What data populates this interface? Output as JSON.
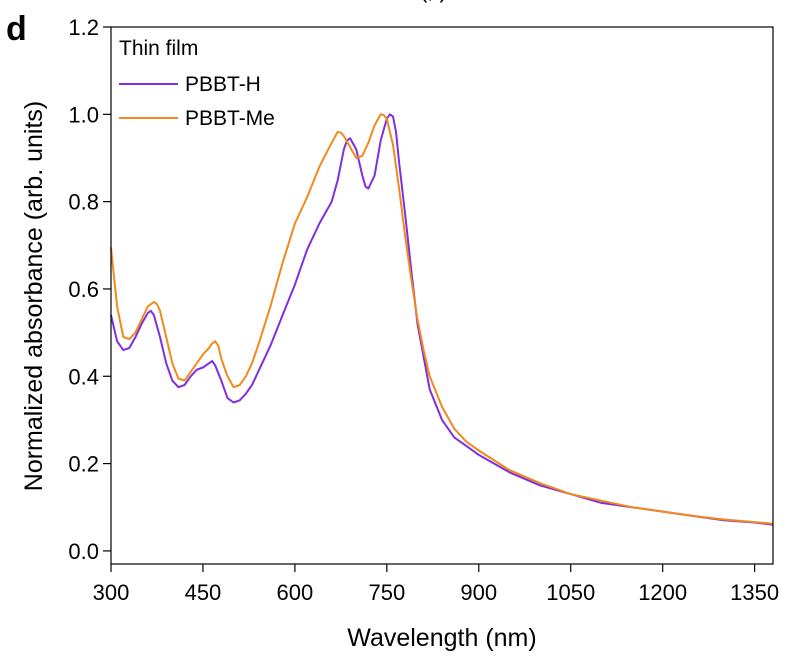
{
  "panel_label": "d",
  "top_text_fragment": "(,  )",
  "chart_data": {
    "type": "line",
    "xlabel": "Wavelength (nm)",
    "ylabel": "Normalized absorbance (arb. units)",
    "xlim": [
      300,
      1380
    ],
    "ylim": [
      -0.03,
      1.2
    ],
    "xticks": [
      300,
      450,
      600,
      750,
      900,
      1050,
      1200,
      1350
    ],
    "yticks": [
      0.0,
      0.2,
      0.4,
      0.6,
      0.8,
      1.0,
      1.2
    ],
    "ytick_labels": [
      "0.0",
      "0.2",
      "0.4",
      "0.6",
      "0.8",
      "1.0",
      "1.2"
    ],
    "grid": false,
    "legend": {
      "title": "Thin film",
      "placement": "top-left"
    },
    "series": [
      {
        "name": "PBBT-H",
        "color": "#7f2ee0",
        "x": [
          300,
          310,
          320,
          330,
          340,
          350,
          360,
          365,
          370,
          380,
          390,
          400,
          410,
          420,
          430,
          440,
          450,
          460,
          465,
          470,
          480,
          490,
          500,
          510,
          520,
          530,
          540,
          560,
          580,
          600,
          620,
          640,
          660,
          670,
          680,
          685,
          690,
          700,
          710,
          715,
          720,
          730,
          740,
          750,
          755,
          760,
          765,
          770,
          780,
          790,
          800,
          820,
          840,
          860,
          880,
          900,
          950,
          1000,
          1050,
          1100,
          1150,
          1200,
          1250,
          1300,
          1350,
          1380
        ],
        "y": [
          0.54,
          0.48,
          0.46,
          0.465,
          0.49,
          0.52,
          0.545,
          0.55,
          0.54,
          0.49,
          0.43,
          0.39,
          0.375,
          0.38,
          0.4,
          0.415,
          0.42,
          0.43,
          0.435,
          0.425,
          0.39,
          0.35,
          0.34,
          0.345,
          0.36,
          0.38,
          0.41,
          0.47,
          0.54,
          0.61,
          0.69,
          0.75,
          0.8,
          0.85,
          0.92,
          0.94,
          0.945,
          0.92,
          0.86,
          0.835,
          0.83,
          0.86,
          0.94,
          0.99,
          1.0,
          0.995,
          0.96,
          0.89,
          0.77,
          0.64,
          0.52,
          0.37,
          0.3,
          0.26,
          0.24,
          0.22,
          0.18,
          0.15,
          0.13,
          0.11,
          0.1,
          0.09,
          0.08,
          0.07,
          0.065,
          0.06
        ]
      },
      {
        "name": "PBBT-Me",
        "color": "#f08a1c",
        "x": [
          300,
          310,
          320,
          330,
          340,
          350,
          360,
          370,
          375,
          380,
          390,
          400,
          410,
          420,
          430,
          440,
          450,
          460,
          465,
          470,
          475,
          480,
          490,
          500,
          510,
          520,
          530,
          540,
          560,
          580,
          600,
          620,
          640,
          660,
          670,
          675,
          680,
          690,
          700,
          710,
          720,
          730,
          740,
          745,
          750,
          760,
          770,
          780,
          790,
          800,
          810,
          820,
          840,
          860,
          880,
          900,
          950,
          1000,
          1050,
          1100,
          1150,
          1200,
          1250,
          1300,
          1350,
          1380
        ],
        "y": [
          0.695,
          0.56,
          0.49,
          0.485,
          0.5,
          0.53,
          0.56,
          0.57,
          0.565,
          0.55,
          0.49,
          0.43,
          0.395,
          0.39,
          0.41,
          0.43,
          0.45,
          0.465,
          0.475,
          0.48,
          0.47,
          0.44,
          0.4,
          0.375,
          0.38,
          0.4,
          0.43,
          0.47,
          0.56,
          0.66,
          0.75,
          0.81,
          0.88,
          0.935,
          0.96,
          0.958,
          0.95,
          0.925,
          0.9,
          0.905,
          0.935,
          0.975,
          1.0,
          0.998,
          0.99,
          0.93,
          0.83,
          0.72,
          0.62,
          0.53,
          0.46,
          0.4,
          0.33,
          0.28,
          0.25,
          0.23,
          0.185,
          0.155,
          0.13,
          0.115,
          0.1,
          0.09,
          0.08,
          0.072,
          0.066,
          0.062
        ]
      }
    ]
  }
}
